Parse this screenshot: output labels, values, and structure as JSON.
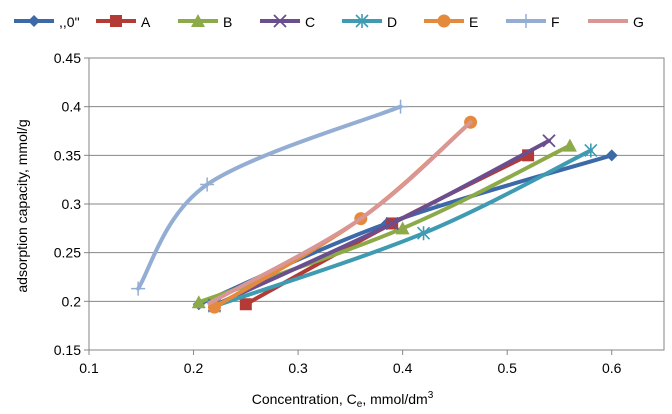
{
  "chart_data": {
    "type": "line",
    "title": "",
    "xlabel": "Concentration, C",
    "xlabel_sub": "e",
    "xlabel_unit": ", mmol/dm",
    "xlabel_sup": "3",
    "ylabel": "adsorption capacity, mmol/g",
    "xlim": [
      0.1,
      0.65
    ],
    "ylim": [
      0.15,
      0.45
    ],
    "x_ticks": [
      "0.1",
      "0.2",
      "0.3",
      "0.4",
      "0.5",
      "0.6"
    ],
    "y_ticks": [
      "0.15",
      "0.2",
      "0.25",
      "0.3",
      "0.35",
      "0.4",
      "0.45"
    ],
    "grid": "horizontal",
    "legend_position": "top",
    "series": [
      {
        "name": ",,0\"",
        "color": "#3c6aa8",
        "marker": "diamond",
        "x": [
          0.205,
          0.385,
          0.6
        ],
        "y": [
          0.197,
          0.28,
          0.35
        ]
      },
      {
        "name": "A",
        "color": "#b43a36",
        "marker": "square",
        "x": [
          0.25,
          0.39,
          0.52
        ],
        "y": [
          0.197,
          0.28,
          0.35
        ]
      },
      {
        "name": "B",
        "color": "#8daa48",
        "marker": "triangle",
        "x": [
          0.205,
          0.4,
          0.56
        ],
        "y": [
          0.199,
          0.275,
          0.36
        ]
      },
      {
        "name": "C",
        "color": "#6b4e8e",
        "marker": "x",
        "x": [
          0.22,
          0.39,
          0.54
        ],
        "y": [
          0.196,
          0.28,
          0.365
        ]
      },
      {
        "name": "D",
        "color": "#3e9bb1",
        "marker": "asterisk",
        "x": [
          0.22,
          0.42,
          0.58
        ],
        "y": [
          0.195,
          0.27,
          0.355
        ]
      },
      {
        "name": "E",
        "color": "#e48a3c",
        "marker": "circle",
        "x": [
          0.22,
          0.36,
          0.465
        ],
        "y": [
          0.194,
          0.285,
          0.384
        ]
      },
      {
        "name": "F",
        "color": "#93add3",
        "marker": "plus",
        "x": [
          0.147,
          0.213,
          0.398
        ],
        "y": [
          0.213,
          0.32,
          0.4
        ]
      },
      {
        "name": "G",
        "color": "#d99695",
        "marker": "none",
        "x": [
          0.215,
          0.36,
          0.465
        ],
        "y": [
          0.198,
          0.285,
          0.384
        ]
      }
    ]
  }
}
